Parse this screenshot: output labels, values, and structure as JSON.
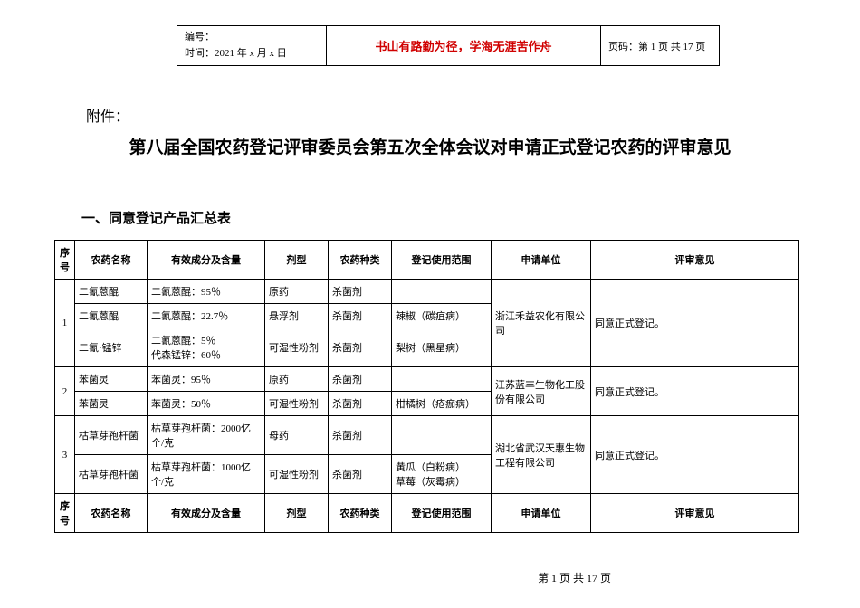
{
  "header": {
    "serial_label": "编号：",
    "time_label": "时间：",
    "time_value": "2021 年 x 月 x 日",
    "motto": "书山有路勤为径，学海无涯苦作舟",
    "page_label": "页码：第 1 页 共 17 页"
  },
  "attachment_label": "附件：",
  "main_title": "第八届全国农药登记评审委员会第五次全体会议对申请正式登记农药的评审意见",
  "section_title": "一、同意登记产品汇总表",
  "columns": {
    "seq": "序号",
    "name": "农药名称",
    "ingredient": "有效成分及含量",
    "form": "剂型",
    "type": "农药种类",
    "scope": "登记使用范围",
    "applicant": "申请单位",
    "opinion": "评审意见"
  },
  "groups": [
    {
      "seq": "1",
      "applicant": "浙江禾益农化有限公司",
      "opinion": "同意正式登记。",
      "rows": [
        {
          "name": "二氰蒽醌",
          "ingredient": "二氰蒽醌：95％",
          "form": "原药",
          "type": "杀菌剂",
          "scope": ""
        },
        {
          "name": "二氰蒽醌",
          "ingredient": "二氰蒽醌：22.7％",
          "form": "悬浮剂",
          "type": "杀菌剂",
          "scope": "辣椒（碳疽病）"
        },
        {
          "name": "二氰·锰锌",
          "ingredient": "二氰蒽醌：5％\n代森锰锌：60％",
          "form": "可湿性粉剂",
          "type": "杀菌剂",
          "scope": "梨树（黑星病）"
        }
      ]
    },
    {
      "seq": "2",
      "applicant": "江苏蓝丰生物化工股份有限公司",
      "opinion": "同意正式登记。",
      "rows": [
        {
          "name": "苯菌灵",
          "ingredient": "苯菌灵：95％",
          "form": "原药",
          "type": "杀菌剂",
          "scope": ""
        },
        {
          "name": "苯菌灵",
          "ingredient": "苯菌灵：50％",
          "form": "可湿性粉剂",
          "type": "杀菌剂",
          "scope": "柑橘树（疮痂病）"
        }
      ]
    },
    {
      "seq": "3",
      "applicant": "湖北省武汉天惠生物工程有限公司",
      "opinion": "同意正式登记。",
      "rows": [
        {
          "name": "枯草芽孢杆菌",
          "ingredient": "枯草芽孢杆菌：2000亿个/克",
          "form": "母药",
          "type": "杀菌剂",
          "scope": ""
        },
        {
          "name": "枯草芽孢杆菌",
          "ingredient": "枯草芽孢杆菌：1000亿个/克",
          "form": "可湿性粉剂",
          "type": "杀菌剂",
          "scope": "黄瓜（白粉病）\n草莓（灰霉病）"
        }
      ]
    }
  ],
  "footer": "第 1 页 共 17 页",
  "style": {
    "motto_color": "#d00000",
    "border_color": "#000000",
    "background_color": "#ffffff",
    "title_fontsize_pt": 19,
    "section_fontsize_pt": 15,
    "table_fontsize_pt": 11
  }
}
